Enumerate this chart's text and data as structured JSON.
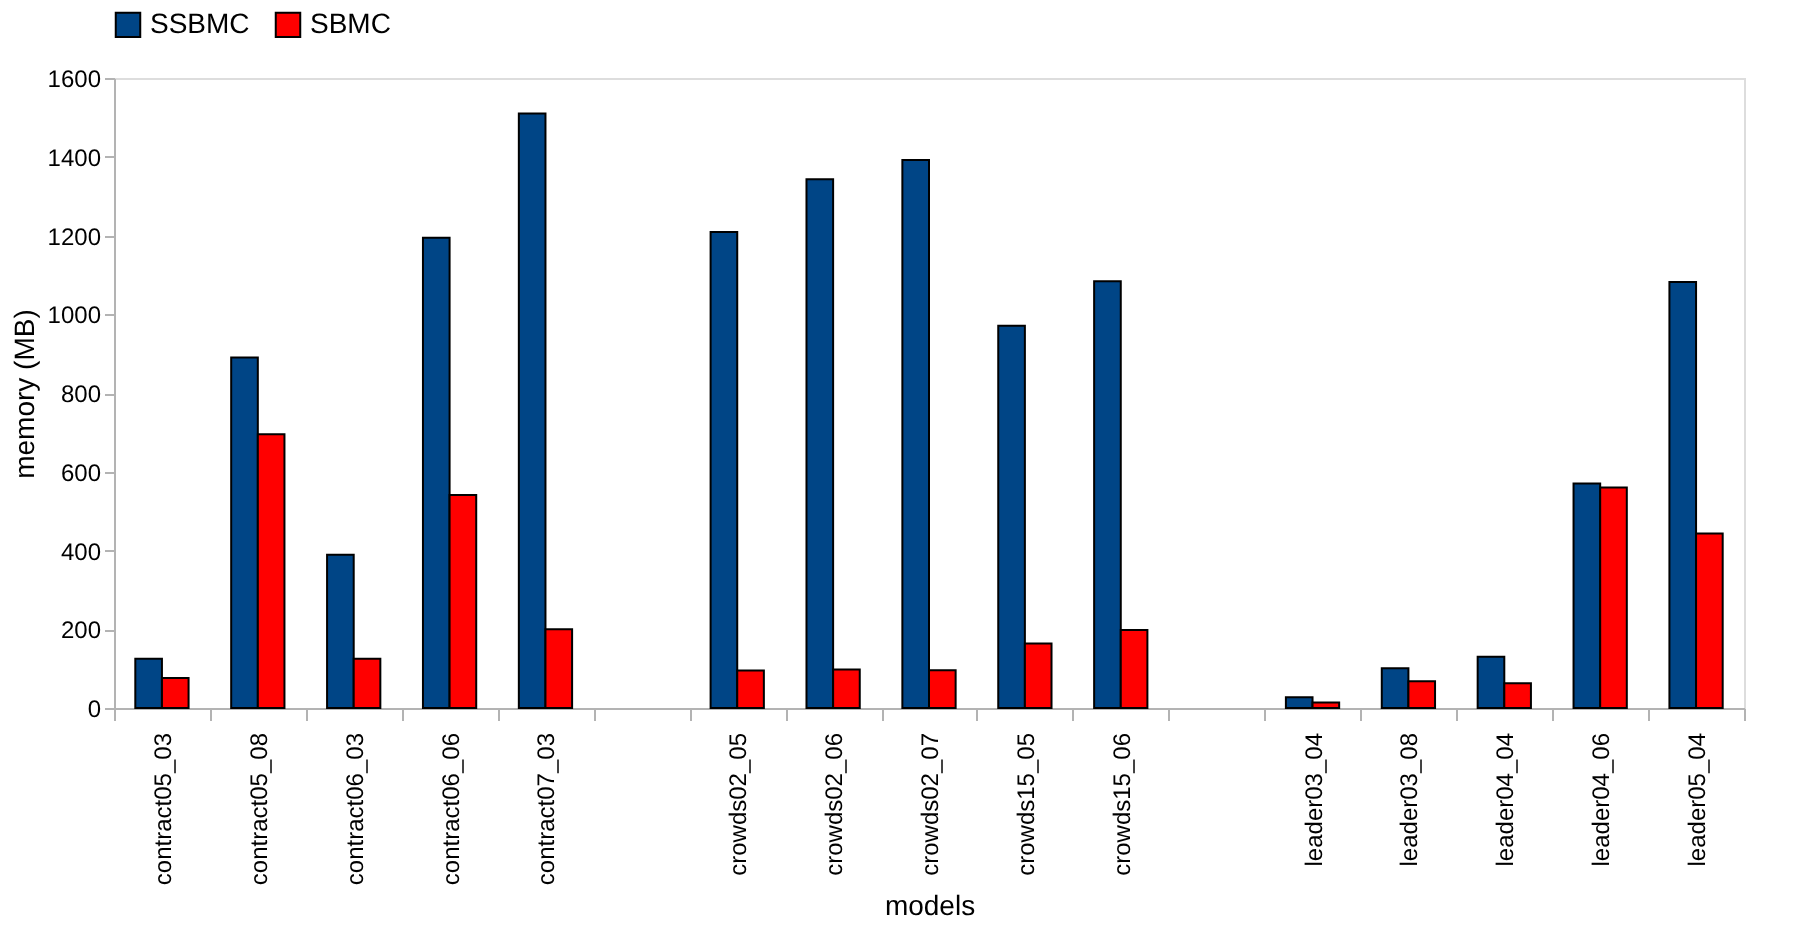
{
  "chart_data": {
    "type": "bar",
    "xlabel": "models",
    "ylabel": "memory (MB)",
    "categories": [
      "contract05_03",
      "contract05_08",
      "contract06_03",
      "contract06_06",
      "contract07_03",
      null,
      "crowds02_05",
      "crowds02_06",
      "crowds02_07",
      "crowds15_05",
      "crowds15_06",
      null,
      "leader03_04",
      "leader03_08",
      "leader04_04",
      "leader04_06",
      "leader05_04"
    ],
    "series": [
      {
        "name": "SSBMC",
        "color": "#004586",
        "values": [
          125,
          890,
          389,
          1194,
          1510,
          null,
          1209,
          1343,
          1392,
          971,
          1084,
          null,
          27,
          101,
          130,
          570,
          1082
        ]
      },
      {
        "name": "SBMC",
        "color": "#ff0000",
        "values": [
          76,
          695,
          125,
          541,
          200,
          null,
          95,
          98,
          96,
          164,
          198,
          null,
          14,
          68,
          63,
          560,
          443
        ]
      }
    ],
    "ylim": [
      0,
      1600
    ],
    "yticks": [
      0,
      200,
      400,
      600,
      800,
      1000,
      1200,
      1400,
      1600
    ],
    "grid": false,
    "legend": "top"
  }
}
